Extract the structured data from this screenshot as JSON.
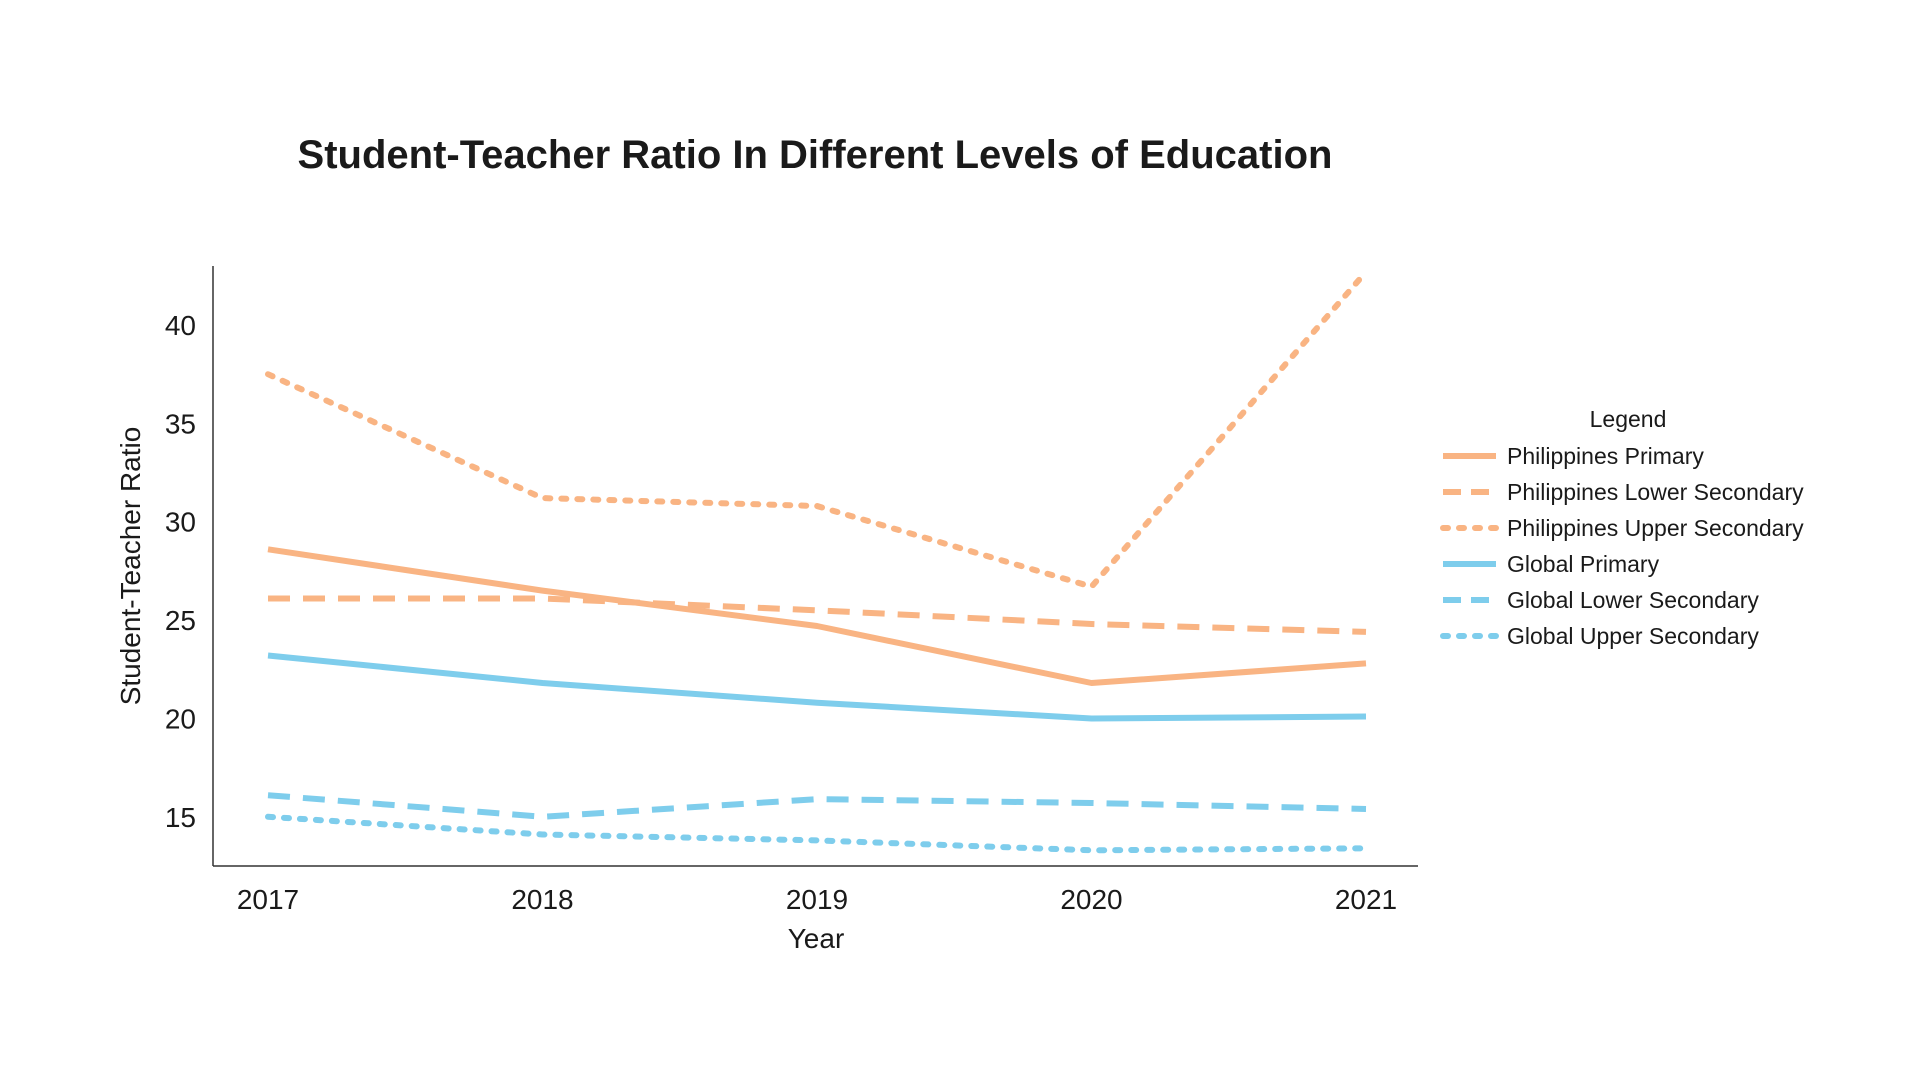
{
  "chart_data": {
    "type": "line",
    "title": "Student-Teacher Ratio In Different Levels of Education",
    "xlabel": "Year",
    "ylabel": "Student-Teacher Ratio",
    "x": [
      "2017",
      "2018",
      "2019",
      "2020",
      "2021"
    ],
    "yticks": [
      "15",
      "20",
      "25",
      "30",
      "35",
      "40"
    ],
    "ylim": [
      12.5,
      43
    ],
    "grid": false,
    "legend": {
      "title": "Legend",
      "placement": "right"
    },
    "series": [
      {
        "name": "Philippines Primary",
        "values": [
          28.6,
          26.5,
          24.7,
          21.8,
          22.8
        ],
        "color": "#f9b483",
        "style": "solid"
      },
      {
        "name": "Philippines Lower Secondary",
        "values": [
          26.1,
          26.1,
          25.5,
          24.8,
          24.4
        ],
        "color": "#f9b483",
        "style": "dashed"
      },
      {
        "name": "Philippines Upper Secondary",
        "values": [
          37.5,
          31.2,
          30.8,
          26.7,
          42.7
        ],
        "color": "#f9b483",
        "style": "dotted"
      },
      {
        "name": "Global Primary",
        "values": [
          23.2,
          21.8,
          20.8,
          20.0,
          20.1
        ],
        "color": "#7ecdec",
        "style": "solid"
      },
      {
        "name": "Global Lower Secondary",
        "values": [
          16.1,
          15.0,
          15.9,
          15.7,
          15.4
        ],
        "color": "#7ecdec",
        "style": "dashed"
      },
      {
        "name": "Global Upper Secondary",
        "values": [
          15.0,
          14.1,
          13.8,
          13.3,
          13.4
        ],
        "color": "#7ecdec",
        "style": "dotted"
      }
    ]
  }
}
